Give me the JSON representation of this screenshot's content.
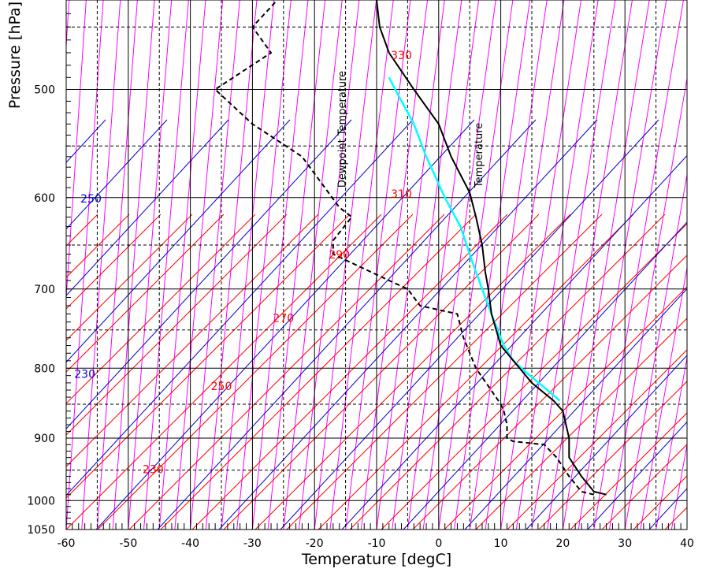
{
  "chart_data": {
    "type": "skew-t",
    "xlabel": "Temperature [degC]",
    "ylabel": "Pressure [hPa]",
    "xlim": [
      -60,
      40
    ],
    "ylim": [
      1050,
      430
    ],
    "x_ticks": [
      -60,
      -50,
      -40,
      -30,
      -20,
      -10,
      0,
      10,
      20,
      30,
      40
    ],
    "y_ticks": [
      500,
      600,
      700,
      800,
      900,
      1000,
      1050
    ],
    "grid": true,
    "dashed_pressures": [
      450,
      550,
      650,
      750,
      850,
      950
    ],
    "curve_labels": {
      "temperature": "Temperature",
      "dewpoint": "Dewpoint Temperature"
    },
    "colors": {
      "temperature": "#000000",
      "dewpoint": "#000000",
      "parcel": "#00ffff",
      "dry_adiabat": "#ff0000",
      "moist_adiabat": "#0000cc",
      "isotherm": "#ff00ff",
      "grid": "#000000"
    },
    "dry_adiabat_labels": [
      {
        "text": "330",
        "x": -6,
        "y": 475
      },
      {
        "text": "310",
        "x": -6,
        "y": 600
      },
      {
        "text": "290",
        "x": -16,
        "y": 665
      },
      {
        "text": "270",
        "x": -25,
        "y": 740
      },
      {
        "text": "250",
        "x": -35,
        "y": 830
      },
      {
        "text": "230",
        "x": -46,
        "y": 955
      }
    ],
    "moist_adiabat_labels": [
      {
        "text": "250",
        "x": -56,
        "y": 605
      },
      {
        "text": "230",
        "x": -57,
        "y": 813
      }
    ],
    "temperature": [
      [
        990,
        27
      ],
      [
        985,
        25
      ],
      [
        960,
        23
      ],
      [
        930,
        21
      ],
      [
        900,
        21
      ],
      [
        860,
        20
      ],
      [
        845,
        18.5
      ],
      [
        820,
        15
      ],
      [
        770,
        10
      ],
      [
        730,
        8.5
      ],
      [
        700,
        8
      ],
      [
        680,
        7.5
      ],
      [
        650,
        7
      ],
      [
        620,
        6
      ],
      [
        595,
        5
      ],
      [
        560,
        2
      ],
      [
        530,
        0
      ],
      [
        500,
        -4
      ],
      [
        470,
        -8
      ],
      [
        450,
        -9.5
      ],
      [
        430,
        -10
      ]
    ],
    "dewpoint": [
      [
        990,
        25
      ],
      [
        985,
        23
      ],
      [
        960,
        21
      ],
      [
        930,
        19
      ],
      [
        910,
        17
      ],
      [
        905,
        12
      ],
      [
        900,
        11
      ],
      [
        880,
        11
      ],
      [
        860,
        10.5
      ],
      [
        850,
        10
      ],
      [
        800,
        6
      ],
      [
        760,
        4
      ],
      [
        730,
        3
      ],
      [
        720,
        -3
      ],
      [
        700,
        -5
      ],
      [
        690,
        -8
      ],
      [
        660,
        -17
      ],
      [
        645,
        -17
      ],
      [
        620,
        -14
      ],
      [
        610,
        -16
      ],
      [
        560,
        -22
      ],
      [
        530,
        -30
      ],
      [
        500,
        -36
      ],
      [
        470,
        -27
      ],
      [
        450,
        -30
      ],
      [
        435,
        -27
      ],
      [
        430,
        -26
      ]
    ],
    "parcel": [
      [
        845,
        19.5
      ],
      [
        830,
        17.5
      ],
      [
        805,
        14
      ],
      [
        790,
        12
      ],
      [
        770,
        10.5
      ],
      [
        740,
        9
      ],
      [
        710,
        7.5
      ],
      [
        670,
        5.5
      ],
      [
        630,
        3.5
      ],
      [
        600,
        1
      ],
      [
        560,
        -2
      ],
      [
        530,
        -4
      ],
      [
        500,
        -7
      ],
      [
        490,
        -8
      ]
    ]
  }
}
